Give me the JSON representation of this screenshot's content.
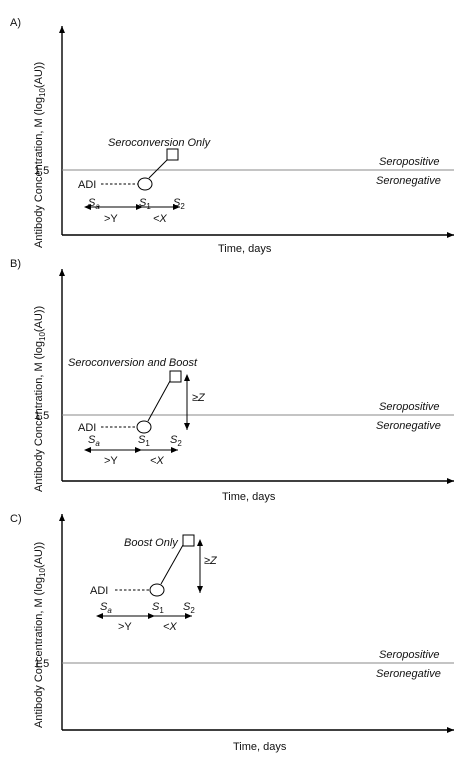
{
  "panels": [
    {
      "tag": "A)",
      "title": "Seroconversion Only",
      "ylabel_main": "Antibody Concentration, M (log",
      "ylabel_sub": "10",
      "ylabel_end": "(AU))",
      "xlabel": "Time, days",
      "threshold_value": "1.5",
      "seropositive": "Seropositive",
      "seronegative": "Seronegative",
      "adi": "ADI",
      "sa": "S",
      "sa_sub": "a",
      "s1": "S",
      "s1_sub": "1",
      "s2": "S",
      "s2_sub": "2",
      "gt_y": ">Y",
      "lt_x": "<X"
    },
    {
      "tag": "B)",
      "title": "Seroconversion and Boost",
      "ylabel_main": "Antibody Concentration, M (log",
      "ylabel_sub": "10",
      "ylabel_end": "(AU))",
      "xlabel": "Time, days",
      "threshold_value": "1.5",
      "seropositive": "Seropositive",
      "seronegative": "Seronegative",
      "adi": "ADI",
      "sa": "S",
      "sa_sub": "a",
      "s1": "S",
      "s1_sub": "1",
      "s2": "S",
      "s2_sub": "2",
      "gt_y": ">Y",
      "lt_x": "<X",
      "ge_z": "≥Z"
    },
    {
      "tag": "C)",
      "title": "Boost Only",
      "ylabel_main": "Antibody Concentration, M (log",
      "ylabel_sub": "10",
      "ylabel_end": "(AU))",
      "xlabel": "Time, days",
      "threshold_value": "1.5",
      "seropositive": "Seropositive",
      "seronegative": "Seronegative",
      "adi": "ADI",
      "sa": "S",
      "sa_sub": "a",
      "s1": "S",
      "s1_sub": "1",
      "s2": "S",
      "s2_sub": "2",
      "gt_y": ">Y",
      "lt_x": "<X",
      "ge_z": "≥Z"
    }
  ]
}
